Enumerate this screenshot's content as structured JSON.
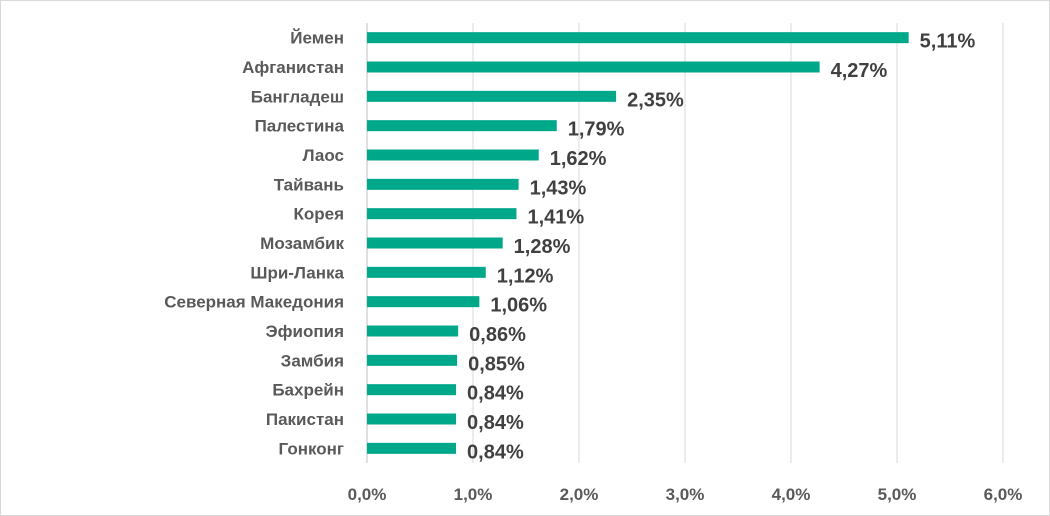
{
  "chart_data": {
    "type": "bar",
    "orientation": "horizontal",
    "categories": [
      "Йемен",
      "Афганистан",
      "Бангладеш",
      "Палестина",
      "Лаос",
      "Тайвань",
      "Корея",
      "Мозамбик",
      "Шри-Ланка",
      "Северная Македония",
      "Эфиопия",
      "Замбия",
      "Бахрейн",
      "Пакистан",
      "Гонконг"
    ],
    "values": [
      5.11,
      4.27,
      2.35,
      1.79,
      1.62,
      1.43,
      1.41,
      1.28,
      1.12,
      1.06,
      0.86,
      0.85,
      0.84,
      0.84,
      0.84
    ],
    "data_labels": [
      "5,11%",
      "4,27%",
      "2,35%",
      "1,79%",
      "1,62%",
      "1,43%",
      "1,41%",
      "1,28%",
      "1,12%",
      "1,06%",
      "0,86%",
      "0,85%",
      "0,84%",
      "0,84%",
      "0,84%"
    ],
    "x_ticks": [
      "0,0%",
      "1,0%",
      "2,0%",
      "3,0%",
      "4,0%",
      "5,0%",
      "6,0%"
    ],
    "xlim": [
      0,
      6
    ],
    "grid": "vertical",
    "legend": "none",
    "bar_color": "#00A88A",
    "title": "",
    "xlabel": "",
    "ylabel": ""
  }
}
